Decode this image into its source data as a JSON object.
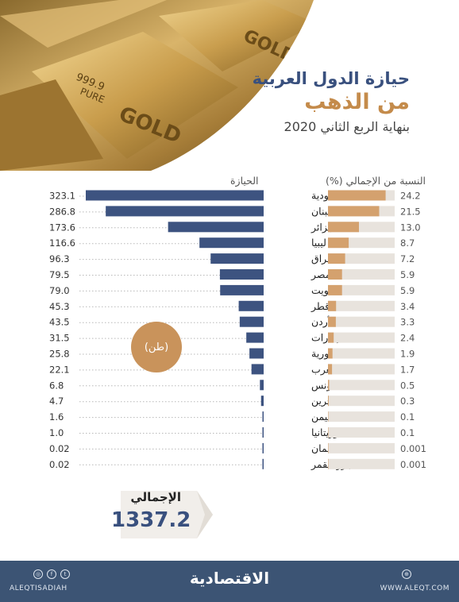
{
  "header": {
    "title_line1": "حيازة الدول العربية",
    "title_line2": "من الذهب",
    "title_line3": "بنهاية الربع الثاني 2020",
    "photo_text": {
      "purity": "999.9",
      "pure": "PURE",
      "gold": "GOLD"
    }
  },
  "chart_data": {
    "type": "bar",
    "percent_header": "النسبة من الإجمالي (%)",
    "holding_header": "الحيازة",
    "unit": "(طن)",
    "categories": [
      "السعودية",
      "لبنان",
      "الجزائر",
      "ليبيا",
      "العراق",
      "مصر",
      "الكويت",
      "قطر",
      "الأردن",
      "الإمارات",
      "سورية",
      "المغرب",
      "تونس",
      "البحرين",
      "اليمن",
      "موريتانيا",
      "سلطنة عمان",
      "جزر القمر"
    ],
    "holding_labels": [
      "323.1",
      "286.8",
      "173.6",
      "116.6",
      "96.3",
      "79.5",
      "79.0",
      "45.3",
      "43.5",
      "31.5",
      "25.8",
      "22.1",
      "6.8",
      "4.7",
      "1.6",
      "1.0",
      "0.02",
      "0.02"
    ],
    "holding_values": [
      323.1,
      286.8,
      173.6,
      116.6,
      96.3,
      79.5,
      79.0,
      45.3,
      43.5,
      31.5,
      25.8,
      22.1,
      6.8,
      4.7,
      1.6,
      1.0,
      0.02,
      0.02
    ],
    "percent_labels": [
      "24.2",
      "21.5",
      "13.0",
      "8.7",
      "7.2",
      "5.9",
      "5.9",
      "3.4",
      "3.3",
      "2.4",
      "1.9",
      "1.7",
      "0.5",
      "0.3",
      "0.1",
      "0.1",
      "0.001",
      "0.001"
    ],
    "percent_values": [
      24.2,
      21.5,
      13.0,
      8.7,
      7.2,
      5.9,
      5.9,
      3.4,
      3.3,
      2.4,
      1.9,
      1.7,
      0.5,
      0.3,
      0.1,
      0.1,
      0.001,
      0.001
    ],
    "total_label": "الإجمالي",
    "total_value": "1337.2",
    "colors": {
      "holding_bar": "#3d5380",
      "percent_bar": "#d4a16e",
      "percent_track": "#e8e3dd",
      "dots": "#b8b8b8"
    }
  },
  "footer": {
    "logo": "الاقتصادية",
    "handle": "ALEQTISADIAH",
    "site": "WWW.ALEQT.COM",
    "social_icons": [
      "instagram-icon",
      "facebook-icon",
      "twitter-icon"
    ],
    "globe_icon": "globe-icon"
  }
}
